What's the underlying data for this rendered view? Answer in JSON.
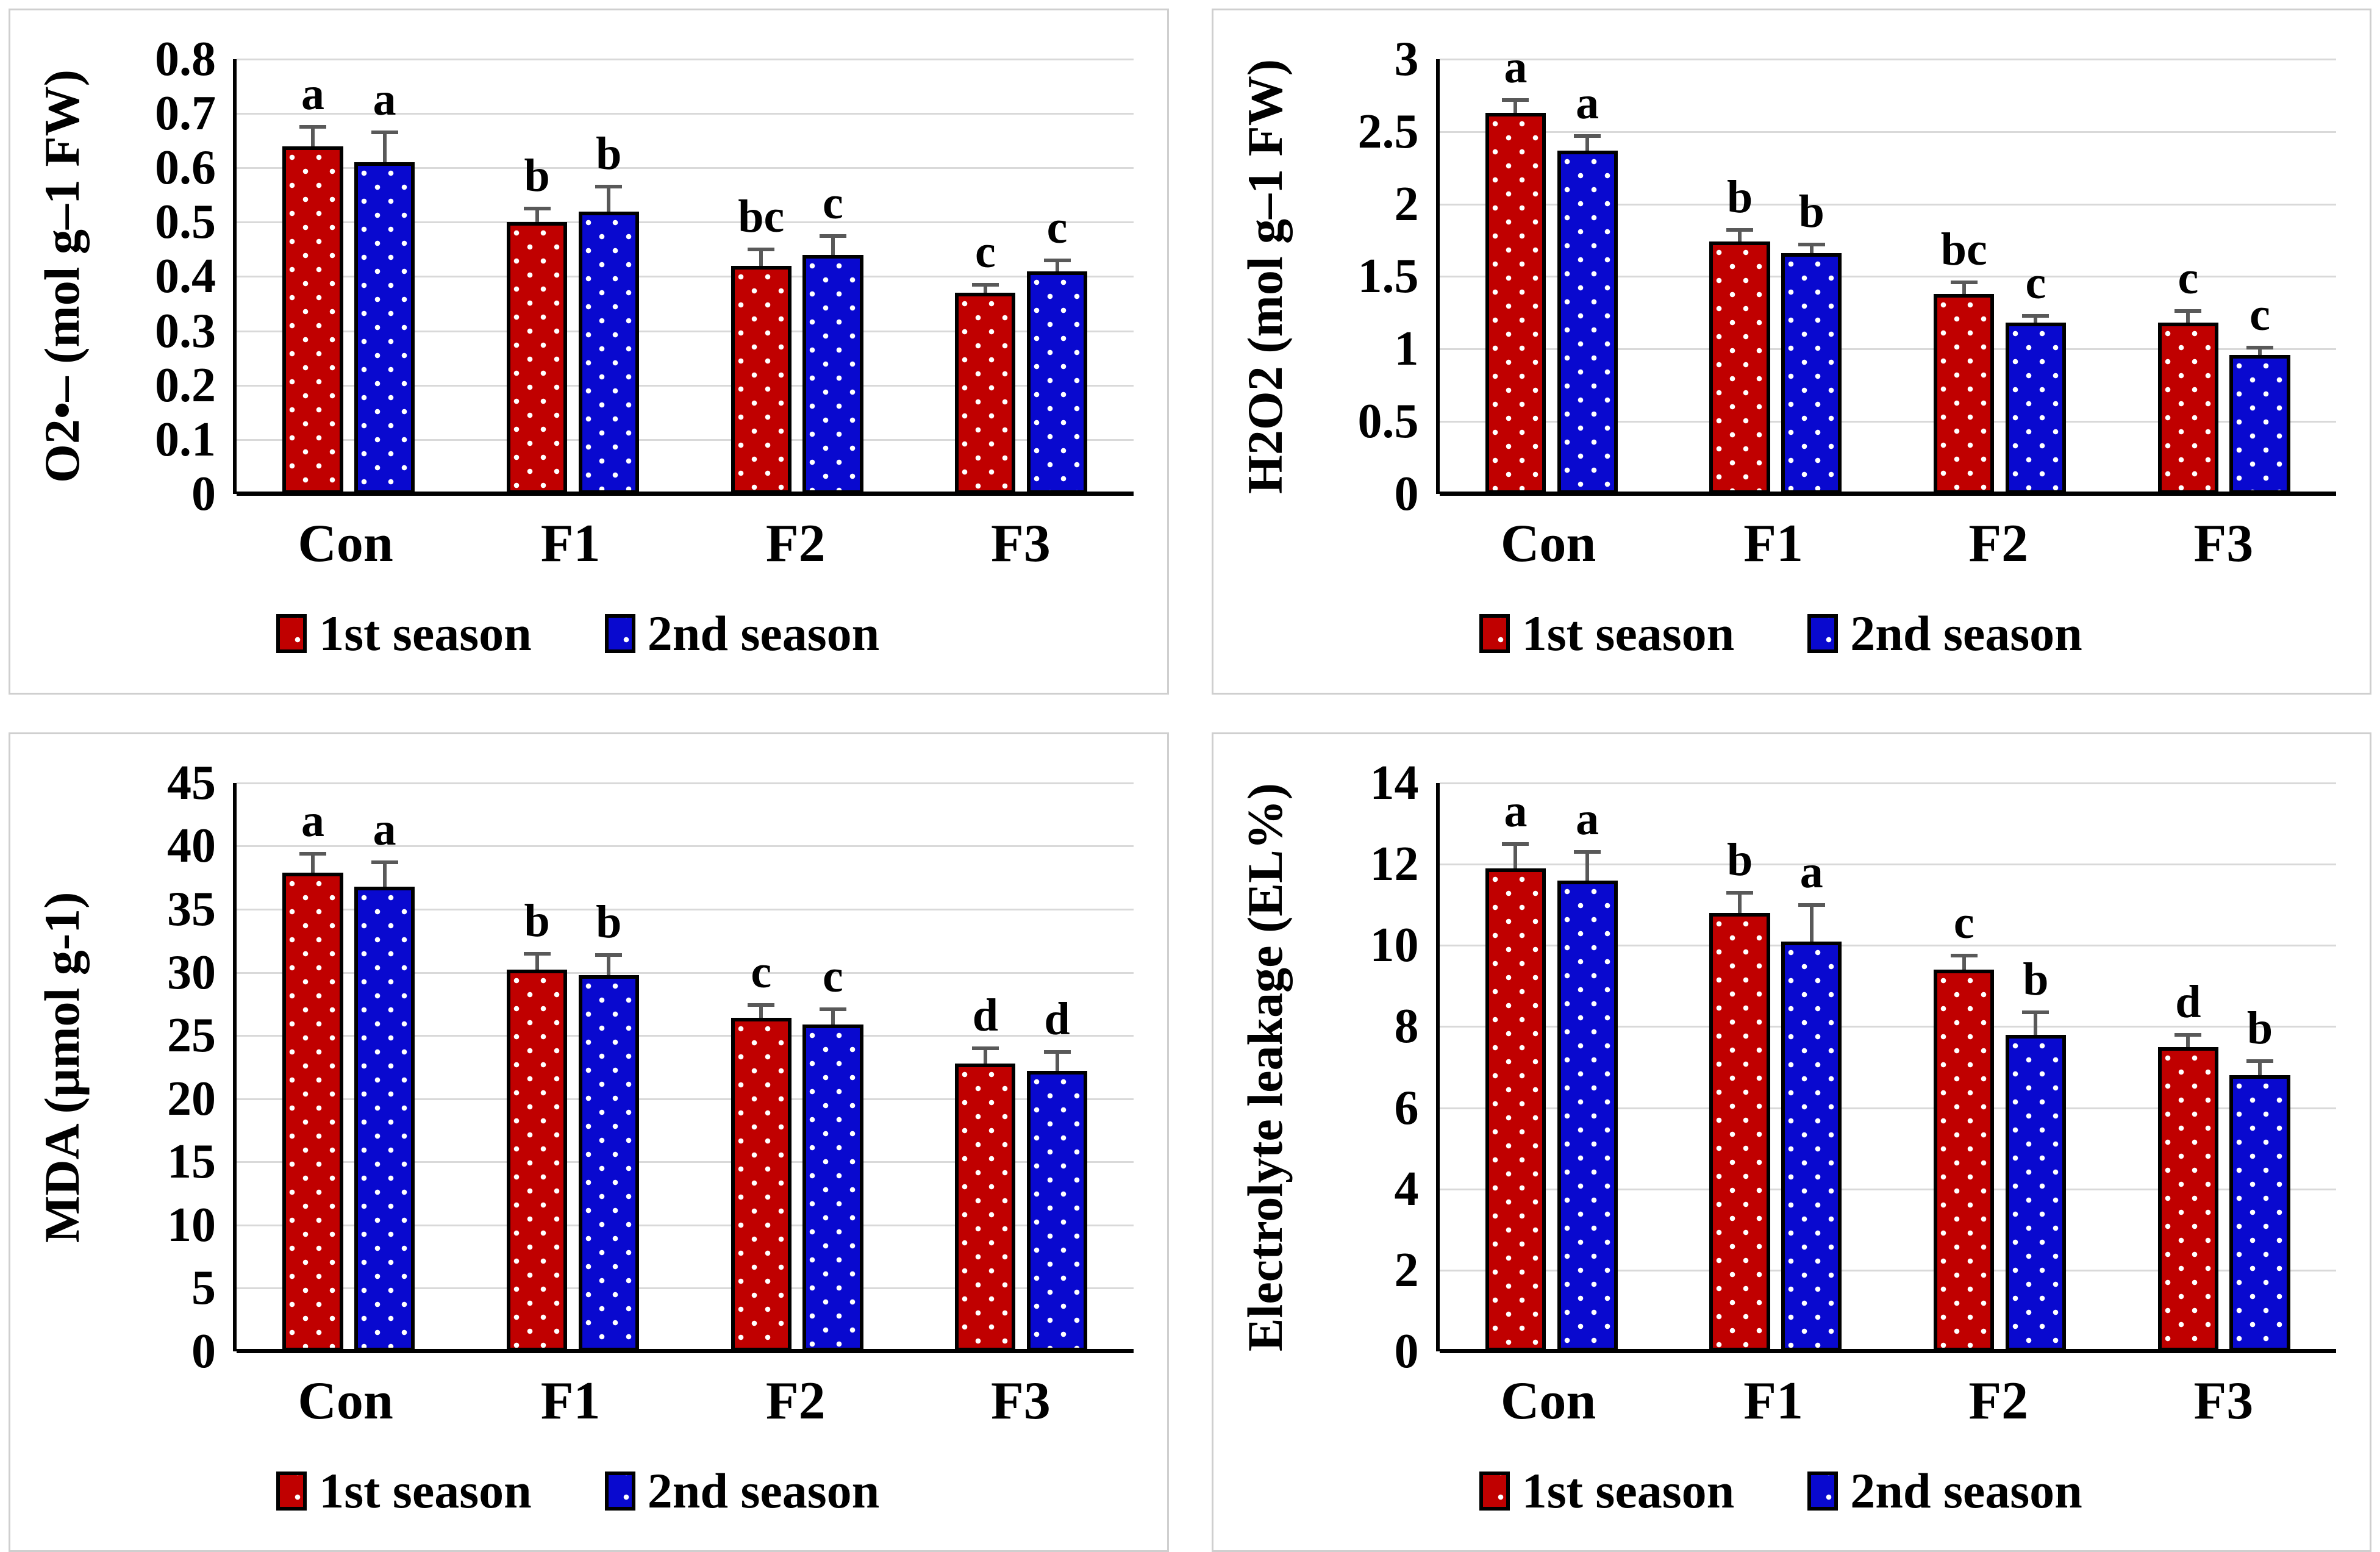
{
  "figure": {
    "categories": [
      "Con",
      "F1",
      "F2",
      "F3"
    ],
    "legend": [
      "1st season",
      "2nd season"
    ],
    "colors": {
      "season1": "#C00000",
      "season2": "#0909CF",
      "error_bar": "#595959",
      "gridline": "#D9D9D9",
      "axis": "#000000"
    }
  },
  "chart_data": [
    {
      "type": "bar",
      "title": "",
      "ylabel": "O2•– (mol g–1 FW)",
      "xlabel": "",
      "categories": [
        "Con",
        "F1",
        "F2",
        "F3"
      ],
      "ymax": 0.8,
      "ylim": [
        0,
        0.8
      ],
      "ytick_labels": [
        "0.8",
        "0.7",
        "0.6",
        "0.5",
        "0.4",
        "0.3",
        "0.2",
        "0.1",
        "0"
      ],
      "grid": true,
      "legend_position": "bottom",
      "series": [
        {
          "name": "1st season",
          "color": "#C00000",
          "values": [
            0.64,
            0.5,
            0.42,
            0.37
          ],
          "errors": [
            0.035,
            0.025,
            0.03,
            0.015
          ],
          "letters": [
            "a",
            "b",
            "bc",
            "c"
          ]
        },
        {
          "name": "2nd season",
          "color": "#0909CF",
          "values": [
            0.61,
            0.52,
            0.44,
            0.41
          ],
          "errors": [
            0.055,
            0.045,
            0.035,
            0.02
          ],
          "letters": [
            "a",
            "b",
            "c",
            "c"
          ]
        }
      ]
    },
    {
      "type": "bar",
      "title": "",
      "ylabel": "H2O2 (mol g–1 FW)",
      "xlabel": "",
      "categories": [
        "Con",
        "F1",
        "F2",
        "F3"
      ],
      "ymax": 3,
      "ylim": [
        0,
        3
      ],
      "ytick_labels": [
        "3",
        "2.5",
        "2",
        "1.5",
        "1",
        "0.5",
        "0"
      ],
      "grid": true,
      "legend_position": "bottom",
      "series": [
        {
          "name": "1st season",
          "color": "#C00000",
          "values": [
            2.63,
            1.74,
            1.38,
            1.18
          ],
          "errors": [
            0.09,
            0.08,
            0.08,
            0.08
          ],
          "letters": [
            "a",
            "b",
            "bc",
            "c"
          ]
        },
        {
          "name": "2nd season",
          "color": "#0909CF",
          "values": [
            2.37,
            1.66,
            1.18,
            0.96
          ],
          "errors": [
            0.1,
            0.06,
            0.05,
            0.05
          ],
          "letters": [
            "a",
            "b",
            "c",
            "c"
          ]
        }
      ]
    },
    {
      "type": "bar",
      "title": "",
      "ylabel": "MDA (µmol g-1)",
      "xlabel": "",
      "categories": [
        "Con",
        "F1",
        "F2",
        "F3"
      ],
      "ymax": 45,
      "ylim": [
        0,
        45
      ],
      "ytick_labels": [
        "45",
        "40",
        "35",
        "30",
        "25",
        "20",
        "15",
        "10",
        "5",
        "0"
      ],
      "grid": true,
      "legend_position": "bottom",
      "series": [
        {
          "name": "1st season",
          "color": "#C00000",
          "values": [
            37.9,
            30.2,
            26.4,
            22.8
          ],
          "errors": [
            1.5,
            1.3,
            1.0,
            1.2
          ],
          "letters": [
            "a",
            "b",
            "c",
            "d"
          ]
        },
        {
          "name": "2nd season",
          "color": "#0909CF",
          "values": [
            36.8,
            29.8,
            25.9,
            22.2
          ],
          "errors": [
            1.9,
            1.6,
            1.2,
            1.5
          ],
          "letters": [
            "a",
            "b",
            "c",
            "d"
          ]
        }
      ]
    },
    {
      "type": "bar",
      "title": "",
      "ylabel": "Electrolyte leakage  (EL%)",
      "xlabel": "",
      "categories": [
        "Con",
        "F1",
        "F2",
        "F3"
      ],
      "ymax": 14,
      "ylim": [
        0,
        14
      ],
      "ytick_labels": [
        "14",
        "12",
        "10",
        "8",
        "6",
        "4",
        "2",
        "0"
      ],
      "grid": true,
      "legend_position": "bottom",
      "series": [
        {
          "name": "1st season",
          "color": "#C00000",
          "values": [
            11.9,
            10.8,
            9.4,
            7.5
          ],
          "errors": [
            0.6,
            0.5,
            0.35,
            0.3
          ],
          "letters": [
            "a",
            "b",
            "c",
            "d"
          ]
        },
        {
          "name": "2nd season",
          "color": "#0909CF",
          "values": [
            11.6,
            10.1,
            7.8,
            6.8
          ],
          "errors": [
            0.7,
            0.9,
            0.55,
            0.35
          ],
          "letters": [
            "a",
            "a",
            "b",
            "b"
          ]
        }
      ]
    }
  ]
}
